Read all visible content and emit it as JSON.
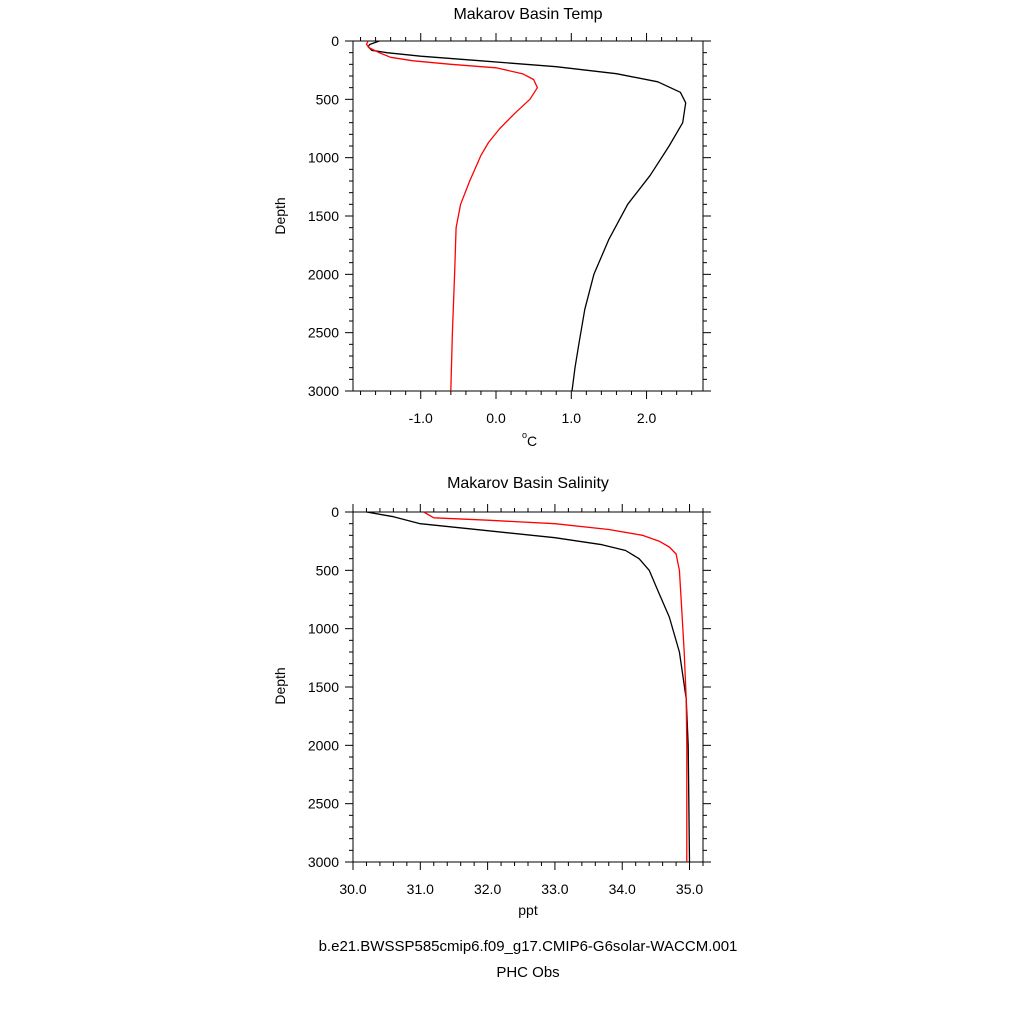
{
  "chart_data": [
    {
      "type": "line",
      "title": "Makarov Basin Temp",
      "xlabel_main": "o",
      "xlabel_sub": "C",
      "ylabel": "Depth",
      "xlim": [
        -1.9,
        2.75
      ],
      "ylim": [
        3000,
        0
      ],
      "y_reversed": true,
      "xticks": [
        -1.0,
        0.0,
        1.0,
        2.0
      ],
      "xtick_labels": [
        "-1.0",
        "0.0",
        "1.0",
        "2.0"
      ],
      "yticks": [
        0,
        500,
        1000,
        1500,
        2000,
        2500,
        3000
      ],
      "ytick_labels": [
        "0",
        "500",
        "1000",
        "1500",
        "2000",
        "2500",
        "3000"
      ],
      "grid": false,
      "series": [
        {
          "color": "#000000",
          "x": [
            -1.55,
            -1.68,
            -1.7,
            -1.65,
            -1.45,
            -1.0,
            -0.2,
            0.8,
            1.6,
            2.15,
            2.45,
            2.52,
            2.48,
            2.3,
            2.05,
            1.75,
            1.5,
            1.3,
            1.18,
            1.1,
            1.05,
            1.01
          ],
          "y": [
            0,
            30,
            50,
            80,
            100,
            130,
            170,
            220,
            280,
            350,
            440,
            530,
            700,
            900,
            1150,
            1400,
            1700,
            2000,
            2300,
            2600,
            2800,
            3000
          ]
        },
        {
          "color": "#ff0000",
          "x": [
            -1.7,
            -1.72,
            -1.68,
            -1.55,
            -1.4,
            -1.1,
            -0.6,
            0.0,
            0.35,
            0.5,
            0.55,
            0.45,
            0.25,
            0.05,
            -0.1,
            -0.2,
            -0.35,
            -0.47,
            -0.53,
            -0.55,
            -0.58,
            -0.6
          ],
          "y": [
            0,
            30,
            60,
            100,
            140,
            170,
            200,
            230,
            280,
            330,
            400,
            500,
            620,
            750,
            870,
            980,
            1200,
            1400,
            1600,
            2000,
            2500,
            3000
          ]
        }
      ]
    },
    {
      "type": "line",
      "title": "Makarov Basin Salinity",
      "xlabel": "ppt",
      "ylabel": "Depth",
      "xlim": [
        30.0,
        35.2
      ],
      "ylim": [
        3000,
        0
      ],
      "y_reversed": true,
      "xticks": [
        30.0,
        31.0,
        32.0,
        33.0,
        34.0,
        35.0
      ],
      "xtick_labels": [
        "30.0",
        "31.0",
        "32.0",
        "33.0",
        "34.0",
        "35.0"
      ],
      "yticks": [
        0,
        500,
        1000,
        1500,
        2000,
        2500,
        3000
      ],
      "ytick_labels": [
        "0",
        "500",
        "1000",
        "1500",
        "2000",
        "2500",
        "3000"
      ],
      "grid": false,
      "series": [
        {
          "color": "#000000",
          "x": [
            30.2,
            30.6,
            31.0,
            32.0,
            33.0,
            33.7,
            34.05,
            34.25,
            34.4,
            34.55,
            34.7,
            34.85,
            34.95,
            34.98,
            35.0
          ],
          "y": [
            0,
            40,
            100,
            160,
            220,
            280,
            330,
            400,
            500,
            700,
            900,
            1200,
            1600,
            2000,
            3000
          ]
        },
        {
          "color": "#ff0000",
          "x": [
            31.05,
            31.2,
            32.0,
            33.0,
            33.8,
            34.3,
            34.55,
            34.7,
            34.8,
            34.85,
            34.88,
            34.92,
            34.95,
            34.96,
            34.96,
            34.96
          ],
          "y": [
            0,
            50,
            70,
            100,
            150,
            200,
            250,
            300,
            360,
            500,
            800,
            1200,
            1600,
            2000,
            2500,
            3000
          ]
        }
      ]
    }
  ],
  "legend": {
    "model_case": "b.e21.BWSSP585cmip6.f09_g17.CMIP6-G6solar-WACCM.001",
    "model_color": "#000000",
    "obs_label": "PHC Obs",
    "obs_color": "#ff0000"
  }
}
